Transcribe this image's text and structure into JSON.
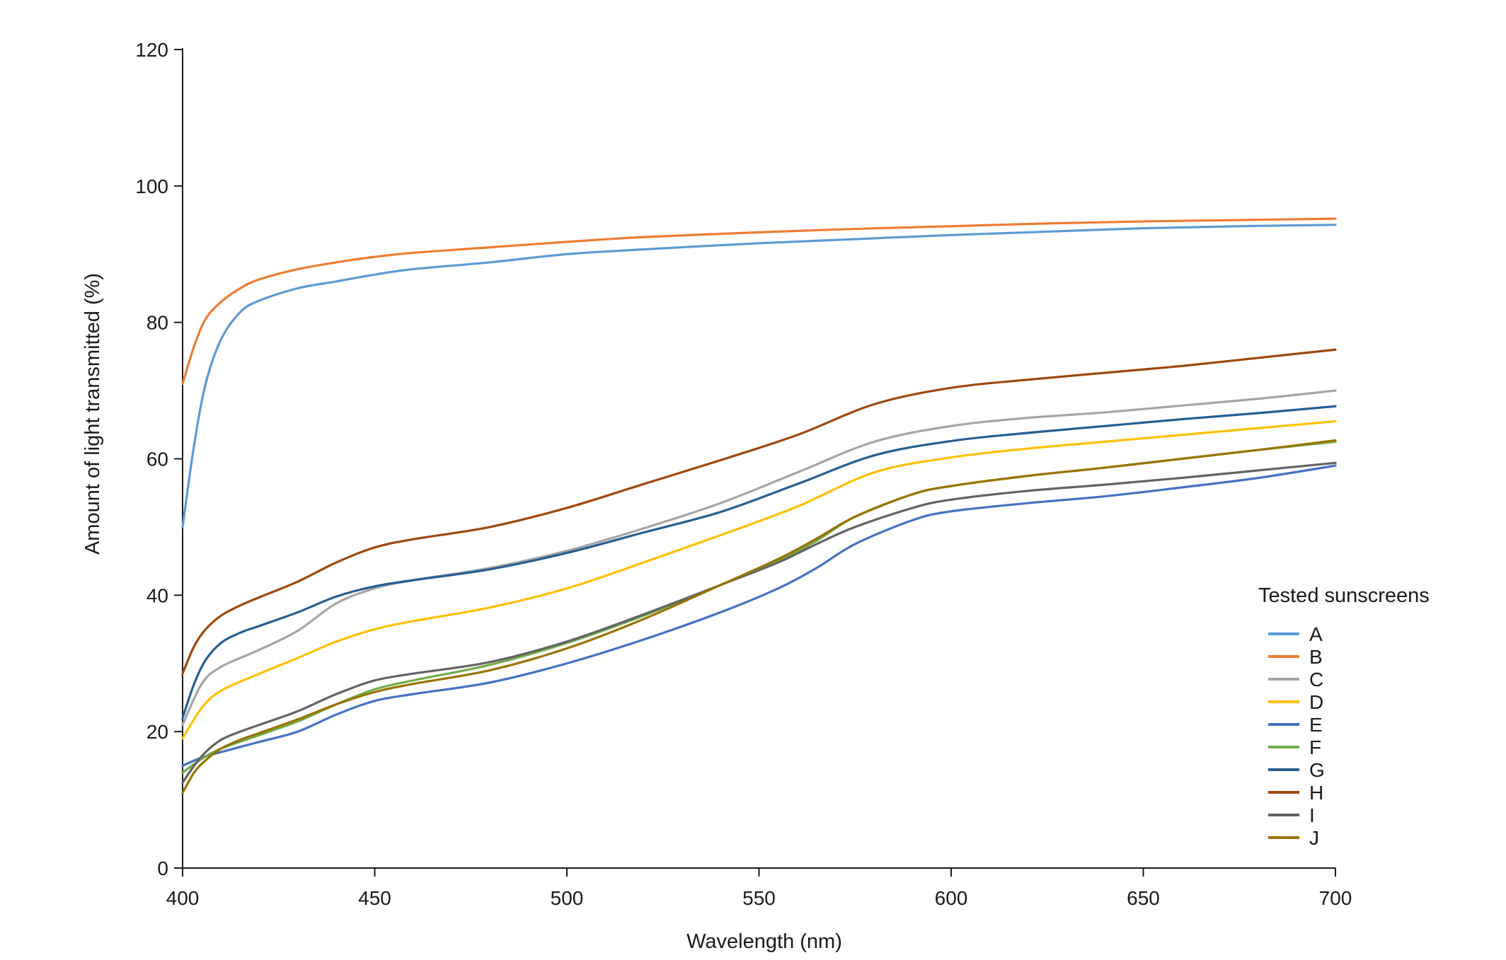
{
  "chart_data": {
    "type": "line",
    "title": "",
    "xlabel": "Wavelength (nm)",
    "ylabel": "Amount of light transmitted (%)",
    "xlim": [
      400,
      700
    ],
    "ylim": [
      0,
      120
    ],
    "xticks": [
      400,
      450,
      500,
      550,
      600,
      650,
      700
    ],
    "yticks": [
      0,
      20,
      40,
      60,
      80,
      100,
      120
    ],
    "grid": false,
    "legend": {
      "title": "Tested sunscreens",
      "placement": "bottom-right"
    },
    "series": [
      {
        "name": "A",
        "color": "#5b9bd5",
        "x": [
          400,
          403,
          406,
          410,
          415,
          420,
          430,
          440,
          450,
          460,
          480,
          500,
          520,
          550,
          575,
          600,
          625,
          650,
          675,
          700
        ],
        "y": [
          50,
          62,
          71,
          77.5,
          81.5,
          83.2,
          85,
          86,
          87,
          87.8,
          88.8,
          90,
          90.7,
          91.6,
          92.2,
          92.8,
          93.3,
          93.8,
          94.1,
          94.3
        ]
      },
      {
        "name": "B",
        "color": "#ed7d31",
        "x": [
          400,
          403,
          406,
          410,
          415,
          420,
          430,
          440,
          450,
          460,
          480,
          500,
          520,
          550,
          575,
          600,
          625,
          650,
          675,
          700
        ],
        "y": [
          71,
          76.5,
          80.5,
          83,
          85,
          86.3,
          87.8,
          88.8,
          89.6,
          90.2,
          91,
          91.8,
          92.5,
          93.2,
          93.7,
          94.1,
          94.5,
          94.8,
          95,
          95.2
        ]
      },
      {
        "name": "C",
        "color": "#a5a5a5",
        "x": [
          400,
          405,
          410,
          420,
          430,
          440,
          450,
          460,
          480,
          500,
          520,
          540,
          560,
          580,
          600,
          620,
          640,
          660,
          680,
          700
        ],
        "y": [
          21,
          27,
          29.5,
          32,
          34.8,
          38.8,
          41,
          42.2,
          44,
          46.5,
          49.8,
          53.5,
          58,
          62.5,
          64.8,
          66,
          66.8,
          67.8,
          68.8,
          70
        ]
      },
      {
        "name": "D",
        "color": "#ffc000",
        "x": [
          400,
          405,
          410,
          420,
          430,
          440,
          450,
          460,
          480,
          500,
          520,
          540,
          560,
          580,
          600,
          620,
          640,
          660,
          680,
          700
        ],
        "y": [
          19,
          23.5,
          26,
          28.5,
          30.8,
          33.2,
          35,
          36.2,
          38.2,
          41,
          44.8,
          48.8,
          53,
          58,
          60.2,
          61.5,
          62.5,
          63.5,
          64.5,
          65.5
        ]
      },
      {
        "name": "E",
        "color": "#4472c4",
        "x": [
          400,
          405,
          410,
          420,
          430,
          440,
          450,
          460,
          480,
          500,
          520,
          540,
          555,
          565,
          575,
          590,
          600,
          620,
          640,
          660,
          680,
          700
        ],
        "y": [
          15,
          16.2,
          17,
          18.5,
          20,
          22.5,
          24.5,
          25.5,
          27.2,
          30,
          33.5,
          37.5,
          41,
          44,
          47.5,
          51,
          52.3,
          53.5,
          54.5,
          55.8,
          57.2,
          59
        ]
      },
      {
        "name": "F",
        "color": "#70ad47",
        "x": [
          400,
          405,
          410,
          420,
          430,
          440,
          450,
          460,
          480,
          500,
          520,
          540,
          555,
          565,
          575,
          590,
          600,
          620,
          640,
          660,
          680,
          700
        ],
        "y": [
          14,
          16,
          17.5,
          19.5,
          21.5,
          24,
          26.2,
          27.5,
          29.8,
          33,
          37,
          41.5,
          45,
          48,
          51.5,
          54.8,
          56,
          57.5,
          58.7,
          60,
          61.3,
          62.5
        ]
      },
      {
        "name": "G",
        "color": "#255e91",
        "x": [
          400,
          403,
          406,
          410,
          415,
          420,
          430,
          440,
          450,
          460,
          480,
          500,
          520,
          540,
          560,
          580,
          600,
          620,
          640,
          660,
          680,
          700
        ],
        "y": [
          22,
          27,
          30.5,
          33,
          34.5,
          35.5,
          37.5,
          39.8,
          41.3,
          42.2,
          43.8,
          46.2,
          49.2,
          52.2,
          56.3,
          60.5,
          62.6,
          63.8,
          64.8,
          65.8,
          66.7,
          67.7
        ]
      },
      {
        "name": "H",
        "color": "#9e480e",
        "x": [
          400,
          403,
          406,
          410,
          415,
          420,
          430,
          440,
          450,
          460,
          480,
          500,
          520,
          540,
          560,
          580,
          600,
          620,
          640,
          660,
          680,
          700
        ],
        "y": [
          28.5,
          32.5,
          35,
          37,
          38.5,
          39.7,
          42,
          44.8,
          47,
          48.2,
          50,
          52.8,
          56.3,
          59.8,
          63.5,
          68,
          70.4,
          71.6,
          72.6,
          73.6,
          74.8,
          76
        ]
      },
      {
        "name": "I",
        "color": "#636363",
        "x": [
          400,
          403,
          406,
          410,
          415,
          420,
          430,
          440,
          450,
          460,
          480,
          500,
          520,
          540,
          555,
          565,
          575,
          590,
          600,
          620,
          640,
          660,
          680,
          700
        ],
        "y": [
          12.5,
          15,
          17,
          18.8,
          20,
          21,
          23,
          25.5,
          27.5,
          28.5,
          30.2,
          33.2,
          37.2,
          41.5,
          44.8,
          47.5,
          50,
          52.8,
          54,
          55.3,
          56.2,
          57.2,
          58.3,
          59.4
        ]
      },
      {
        "name": "J",
        "color": "#997300",
        "x": [
          400,
          403,
          406,
          410,
          415,
          420,
          430,
          440,
          450,
          460,
          480,
          500,
          520,
          540,
          555,
          565,
          575,
          590,
          600,
          620,
          640,
          660,
          680,
          700
        ],
        "y": [
          11,
          14,
          15.8,
          17.5,
          18.8,
          19.8,
          21.8,
          24,
          25.8,
          27,
          29,
          32.2,
          36.5,
          41.5,
          45.3,
          48.3,
          51.5,
          54.8,
          56,
          57.5,
          58.7,
          60,
          61.3,
          62.7
        ]
      }
    ]
  }
}
